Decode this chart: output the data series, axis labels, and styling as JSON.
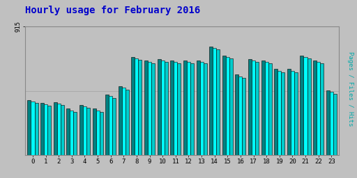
{
  "title": "Hourly usage for February 2016",
  "title_color": "#0000cc",
  "title_fontsize": 10,
  "hours": [
    0,
    1,
    2,
    3,
    4,
    5,
    6,
    7,
    8,
    9,
    10,
    11,
    12,
    13,
    14,
    15,
    16,
    17,
    18,
    19,
    20,
    21,
    22,
    23
  ],
  "pages": [
    390,
    370,
    375,
    330,
    355,
    330,
    430,
    490,
    700,
    675,
    685,
    675,
    675,
    675,
    775,
    710,
    575,
    685,
    675,
    615,
    615,
    710,
    675,
    460
  ],
  "files": [
    380,
    360,
    365,
    318,
    345,
    318,
    420,
    478,
    690,
    665,
    675,
    665,
    665,
    665,
    765,
    700,
    560,
    675,
    665,
    600,
    600,
    700,
    665,
    448
  ],
  "hits": [
    370,
    350,
    355,
    305,
    335,
    305,
    408,
    465,
    678,
    652,
    662,
    652,
    652,
    652,
    752,
    688,
    548,
    662,
    652,
    588,
    588,
    688,
    652,
    436
  ],
  "pages_color": "#008080",
  "files_color": "#00ffff",
  "hits_color": "#00cccc",
  "bg_color": "#c0c0c0",
  "plot_bg_color": "#c0c0c0",
  "bar_edge_color": "#000000",
  "ylabel_right": "Pages / Files / Hits",
  "ylabel_right_color": "#00aaaa",
  "ytick_label": "915",
  "ymax": 915,
  "ymin": 0,
  "grid_color": "#aaaaaa",
  "bar_width": 0.27
}
